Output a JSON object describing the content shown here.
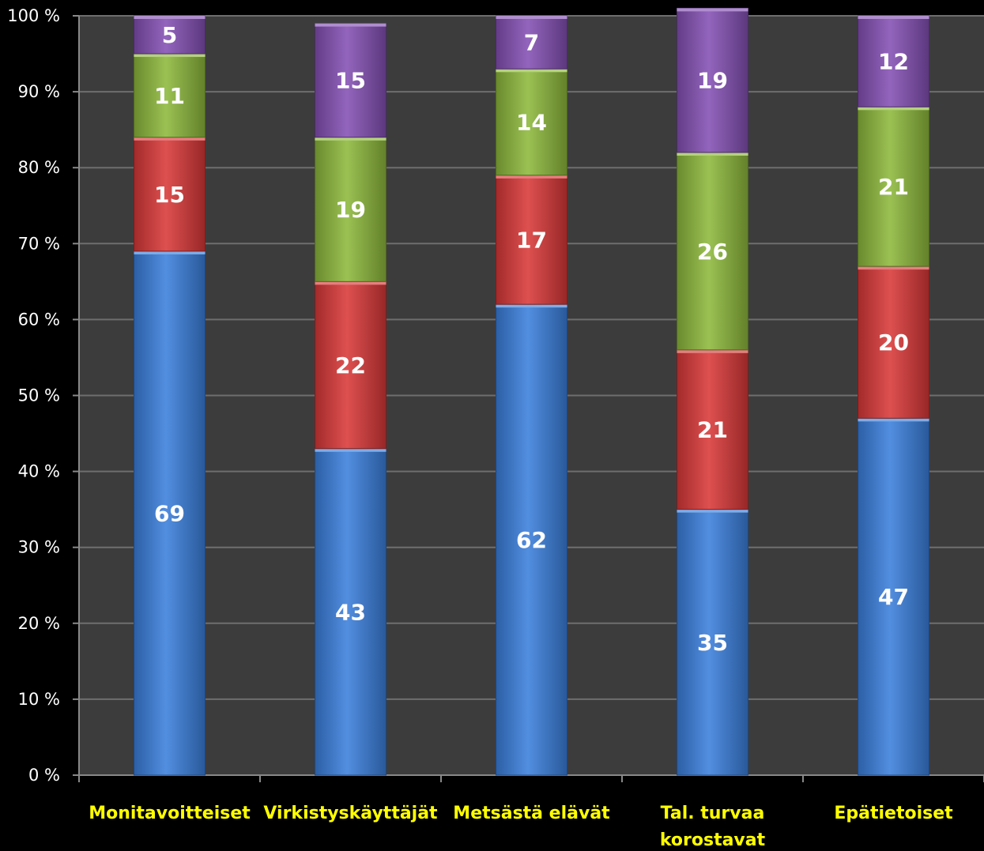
{
  "chart_data": {
    "type": "bar",
    "stacked": true,
    "percent_stacked": true,
    "categories": [
      [
        "Monitavoitteiset"
      ],
      [
        "Virkistyskäyttäjät"
      ],
      [
        "Metsästä elävät"
      ],
      [
        "Tal. turvaa",
        "korostavat"
      ],
      [
        "Epätietoiset"
      ]
    ],
    "series": [
      {
        "color": "#3a7fdc",
        "values": [
          69,
          43,
          62,
          35,
          47
        ]
      },
      {
        "color": "#d93838",
        "values": [
          15,
          22,
          17,
          21,
          20
        ]
      },
      {
        "color": "#8db83c",
        "values": [
          11,
          19,
          14,
          26,
          21
        ]
      },
      {
        "color": "#8450b4",
        "values": [
          5,
          15,
          7,
          19,
          12
        ]
      }
    ],
    "ylim": [
      0,
      100
    ],
    "yticks": [
      "0 %",
      "10 %",
      "20 %",
      "30 %",
      "40 %",
      "50 %",
      "60 %",
      "70 %",
      "80 %",
      "90 %",
      "100 %"
    ],
    "title": "",
    "xlabel": "",
    "ylabel": "",
    "grid": true,
    "legend": "none",
    "plot_background": "#3c3c3c",
    "gridline_color": "#6e6e6e",
    "category_label_color": "#ffff00"
  }
}
